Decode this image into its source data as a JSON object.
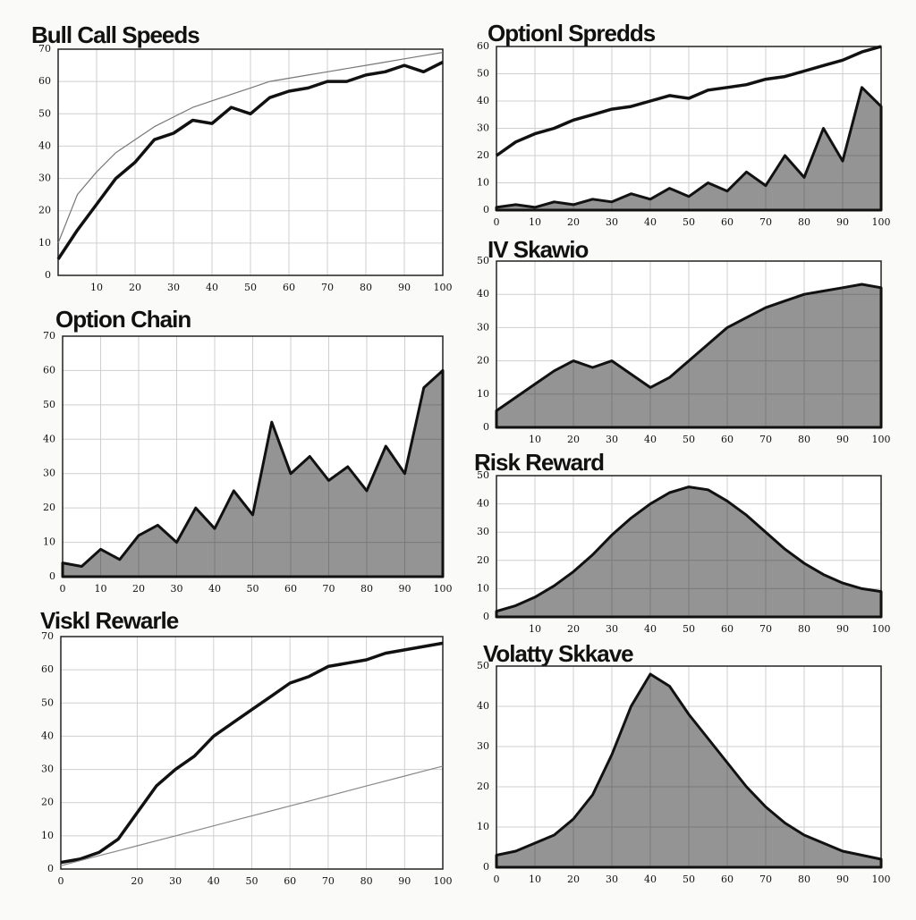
{
  "chart_data": [
    {
      "type": "line",
      "title": "Bull Call Speeds",
      "x": [
        0,
        5,
        10,
        15,
        20,
        25,
        30,
        35,
        40,
        45,
        50,
        55,
        60,
        65,
        70,
        75,
        80,
        85,
        90,
        95,
        100
      ],
      "series": [
        {
          "color": "#111111",
          "values": [
            5,
            14,
            22,
            30,
            35,
            42,
            44,
            48,
            47,
            52,
            50,
            55,
            57,
            58,
            60,
            60,
            62,
            63,
            65,
            63,
            66
          ]
        },
        {
          "color": "#777777",
          "values": [
            10,
            25,
            32,
            38,
            42,
            46,
            49,
            52,
            54,
            56,
            58,
            60,
            61,
            62,
            63,
            64,
            65,
            66,
            67,
            68,
            69
          ]
        }
      ],
      "xlim": [
        0,
        100
      ],
      "xticks": [
        10,
        20,
        30,
        40,
        50,
        60,
        70,
        80,
        90,
        100
      ],
      "ylim": [
        0,
        70
      ],
      "yticks": [
        0,
        10,
        20,
        30,
        40,
        50,
        60,
        70
      ],
      "grid": true
    },
    {
      "type": "line",
      "title": "Optionl Spredds",
      "x": [
        0,
        5,
        10,
        15,
        20,
        25,
        30,
        35,
        40,
        45,
        50,
        55,
        60,
        65,
        70,
        75,
        80,
        85,
        90,
        95,
        100
      ],
      "series": [
        {
          "color": "#111111",
          "values": [
            20,
            25,
            28,
            30,
            33,
            35,
            37,
            38,
            40,
            42,
            41,
            44,
            45,
            46,
            48,
            49,
            51,
            53,
            55,
            58,
            60
          ]
        },
        {
          "color": "#111111",
          "area": true,
          "values": [
            1,
            2,
            1,
            3,
            2,
            4,
            3,
            6,
            4,
            8,
            5,
            10,
            7,
            14,
            9,
            20,
            12,
            30,
            18,
            45,
            38
          ]
        }
      ],
      "xlim": [
        0,
        100
      ],
      "xticks": [
        0,
        10,
        20,
        30,
        40,
        50,
        60,
        70,
        80,
        90,
        100
      ],
      "ylim": [
        0,
        60
      ],
      "yticks": [
        0,
        10,
        20,
        30,
        40,
        50,
        60
      ],
      "grid": true
    },
    {
      "type": "line",
      "title": "IV Skawio",
      "x": [
        0,
        5,
        10,
        15,
        20,
        25,
        30,
        35,
        40,
        45,
        50,
        55,
        60,
        65,
        70,
        75,
        80,
        85,
        90,
        95,
        100
      ],
      "series": [
        {
          "color": "#111111",
          "area": true,
          "values": [
            5,
            9,
            13,
            17,
            20,
            18,
            20,
            16,
            12,
            15,
            20,
            25,
            30,
            33,
            36,
            38,
            40,
            41,
            42,
            43,
            42
          ]
        }
      ],
      "xlim": [
        0,
        100
      ],
      "xticks": [
        10,
        20,
        30,
        40,
        50,
        60,
        70,
        80,
        90,
        100
      ],
      "ylim": [
        0,
        50
      ],
      "yticks": [
        0,
        10,
        20,
        30,
        40,
        50
      ],
      "grid": true
    },
    {
      "type": "line",
      "title": "Option Chain",
      "x": [
        0,
        5,
        10,
        15,
        20,
        25,
        30,
        35,
        40,
        45,
        50,
        55,
        60,
        65,
        70,
        75,
        80,
        85,
        90,
        95,
        100
      ],
      "series": [
        {
          "color": "#111111",
          "area": true,
          "values": [
            4,
            3,
            8,
            5,
            12,
            15,
            10,
            20,
            14,
            25,
            18,
            45,
            30,
            35,
            28,
            32,
            25,
            38,
            30,
            55,
            60
          ]
        }
      ],
      "xlim": [
        0,
        100
      ],
      "xticks": [
        0,
        10,
        20,
        30,
        40,
        50,
        60,
        70,
        80,
        90,
        100
      ],
      "ylim": [
        0,
        70
      ],
      "yticks": [
        0,
        10,
        20,
        30,
        40,
        50,
        60,
        70
      ],
      "grid": true
    },
    {
      "type": "line",
      "title": "Risk Reward",
      "x": [
        0,
        5,
        10,
        15,
        20,
        25,
        30,
        35,
        40,
        45,
        50,
        55,
        60,
        65,
        70,
        75,
        80,
        85,
        90,
        95,
        100
      ],
      "series": [
        {
          "color": "#111111",
          "area": true,
          "values": [
            2,
            4,
            7,
            11,
            16,
            22,
            29,
            35,
            40,
            44,
            46,
            45,
            41,
            36,
            30,
            24,
            19,
            15,
            12,
            10,
            9
          ]
        }
      ],
      "xlim": [
        0,
        100
      ],
      "xticks": [
        10,
        20,
        30,
        40,
        50,
        60,
        70,
        80,
        90,
        100
      ],
      "ylim": [
        0,
        50
      ],
      "yticks": [
        0,
        10,
        20,
        30,
        40,
        50
      ],
      "grid": true
    },
    {
      "type": "line",
      "title": "Viskl Rewarle",
      "x": [
        0,
        5,
        10,
        15,
        20,
        25,
        30,
        35,
        40,
        45,
        50,
        55,
        60,
        65,
        70,
        75,
        80,
        85,
        90,
        95,
        100
      ],
      "series": [
        {
          "color": "#111111",
          "values": [
            2,
            3,
            5,
            9,
            17,
            25,
            30,
            34,
            40,
            44,
            48,
            52,
            56,
            58,
            61,
            62,
            63,
            65,
            66,
            67,
            68
          ]
        },
        {
          "color": "#888888",
          "values": [
            1,
            2.5,
            4,
            5.5,
            7,
            8.5,
            10,
            11.5,
            13,
            14.5,
            16,
            17.5,
            19,
            20.5,
            22,
            23.5,
            25,
            26.5,
            28,
            29.5,
            31
          ]
        }
      ],
      "xlim": [
        0,
        100
      ],
      "xticks": [
        0,
        20,
        30,
        40,
        50,
        60,
        70,
        80,
        90,
        100
      ],
      "ylim": [
        0,
        70
      ],
      "yticks": [
        0,
        10,
        20,
        30,
        40,
        50,
        60,
        70
      ],
      "grid": true
    },
    {
      "type": "line",
      "title": "Volatty Skkave",
      "x": [
        0,
        5,
        10,
        15,
        20,
        25,
        30,
        35,
        40,
        45,
        50,
        55,
        60,
        65,
        70,
        75,
        80,
        85,
        90,
        95,
        100
      ],
      "series": [
        {
          "color": "#111111",
          "area": true,
          "values": [
            3,
            4,
            6,
            8,
            12,
            18,
            28,
            40,
            48,
            45,
            38,
            32,
            26,
            20,
            15,
            11,
            8,
            6,
            4,
            3,
            2
          ]
        }
      ],
      "xlim": [
        0,
        100
      ],
      "xticks": [
        0,
        10,
        20,
        30,
        40,
        50,
        60,
        70,
        80,
        90,
        100
      ],
      "ylim": [
        0,
        50
      ],
      "yticks": [
        0,
        10,
        20,
        30,
        40,
        50
      ],
      "grid": true
    }
  ]
}
